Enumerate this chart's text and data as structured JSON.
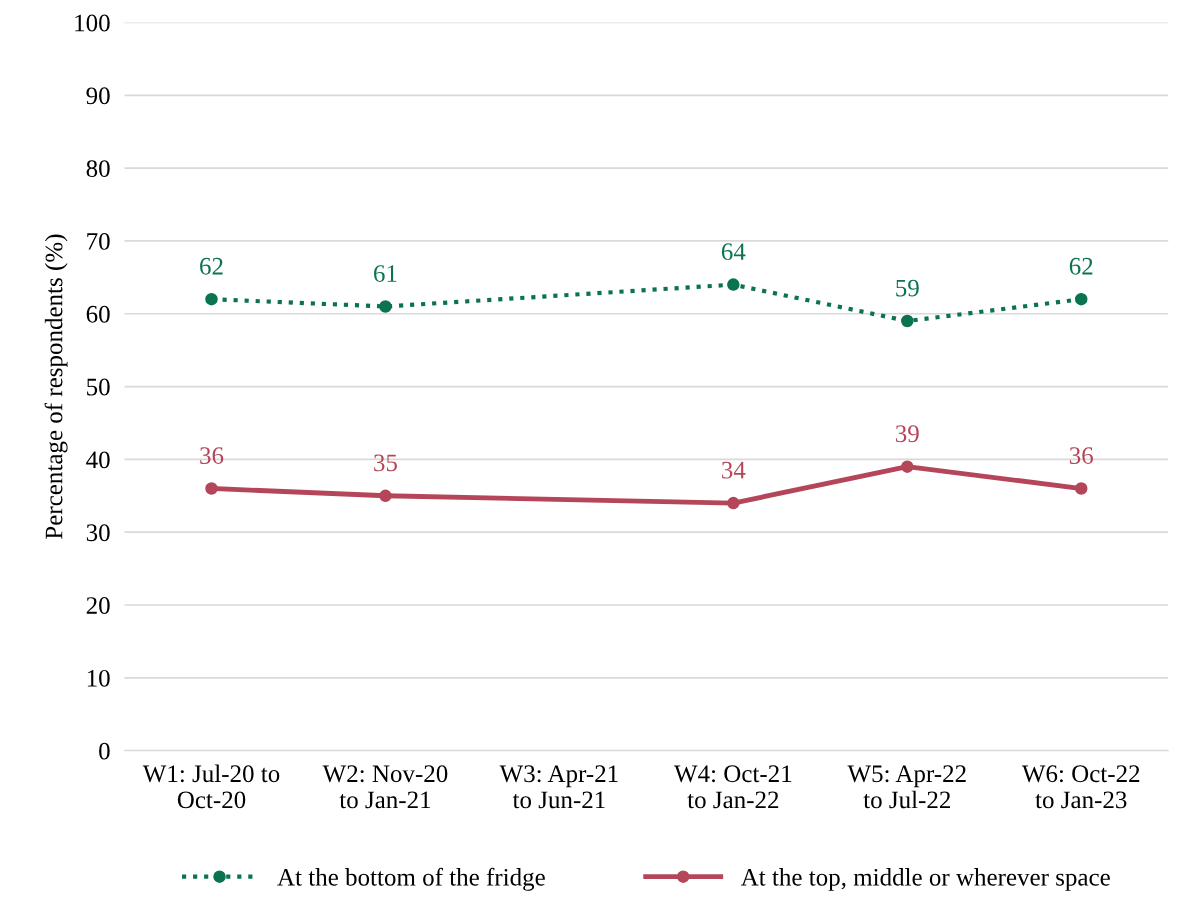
{
  "chart_data": {
    "type": "line",
    "ylabel": "Percentage of respondents (%)",
    "categories": [
      "W1: Jul-20 to\nOct-20",
      "W2: Nov-20\nto Jan-21",
      "W3: Apr-21\nto Jun-21",
      "W4: Oct-21\nto Jan-22",
      "W5: Apr-22\nto Jul-22",
      "W6: Oct-22\nto Jan-23"
    ],
    "series": [
      {
        "name": "At the bottom of the fridge",
        "color": "#0b7350",
        "values": [
          62,
          61,
          null,
          64,
          59,
          62
        ],
        "line_style": "dotted"
      },
      {
        "name": "At the top, middle or wherever space",
        "color": "#b5465a",
        "values": [
          36,
          35,
          null,
          34,
          39,
          36
        ],
        "line_style": "solid"
      }
    ],
    "ylim": [
      0,
      100
    ],
    "yticks": [
      0,
      10,
      20,
      30,
      40,
      50,
      60,
      70,
      80,
      90,
      100
    ],
    "grid": "y",
    "legend": "bottom",
    "marker": "circle",
    "data_labels": true
  }
}
